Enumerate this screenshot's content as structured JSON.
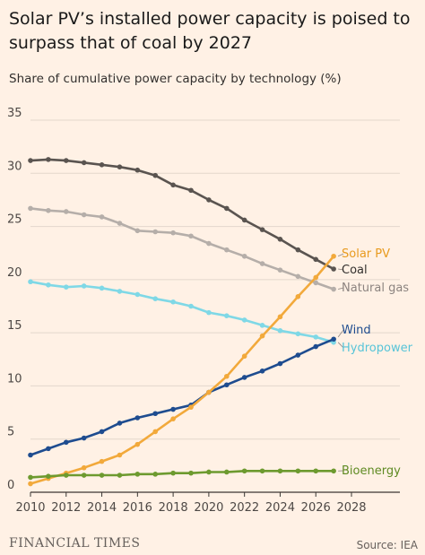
{
  "header": {
    "title": "Solar PV’s installed power capacity is poised to surpass that of coal by 2027",
    "subtitle": "Share of cumulative power capacity by technology (%)"
  },
  "footer": {
    "brand": "FINANCIAL TIMES",
    "source": "Source: IEA"
  },
  "chart_data": {
    "type": "line",
    "title": "Solar PV’s installed power capacity is poised to surpass that of coal by 2027",
    "subtitle": "Share of cumulative power capacity by technology (%)",
    "x": [
      2010,
      2011,
      2012,
      2013,
      2014,
      2015,
      2016,
      2017,
      2018,
      2019,
      2020,
      2021,
      2022,
      2023,
      2024,
      2025,
      2026,
      2027
    ],
    "xlim": [
      2010,
      2028
    ],
    "ylim": [
      0,
      35
    ],
    "x_ticks": [
      2010,
      2012,
      2014,
      2016,
      2018,
      2020,
      2022,
      2024,
      2026,
      2028
    ],
    "y_ticks": [
      0,
      5,
      10,
      15,
      20,
      25,
      30,
      35
    ],
    "grid": "horizontal",
    "legend": "direct-labels-right",
    "series": [
      {
        "name": "Coal",
        "color": "#5a5450",
        "values": [
          31.2,
          31.3,
          31.2,
          31.0,
          30.8,
          30.6,
          30.3,
          29.8,
          28.9,
          28.4,
          27.5,
          26.7,
          25.6,
          24.7,
          23.8,
          22.8,
          21.9,
          21.0
        ]
      },
      {
        "name": "Natural gas",
        "color": "#b5aea9",
        "values": [
          26.7,
          26.5,
          26.4,
          26.1,
          25.9,
          25.3,
          24.6,
          24.5,
          24.4,
          24.1,
          23.4,
          22.8,
          22.2,
          21.5,
          20.9,
          20.3,
          19.7,
          19.1
        ]
      },
      {
        "name": "Hydropower",
        "color": "#7fd8e6",
        "values": [
          19.8,
          19.5,
          19.3,
          19.4,
          19.2,
          18.9,
          18.6,
          18.2,
          17.9,
          17.5,
          16.9,
          16.6,
          16.2,
          15.7,
          15.2,
          14.9,
          14.6,
          14.1
        ]
      },
      {
        "name": "Wind",
        "color": "#1e4c8f",
        "values": [
          3.5,
          4.1,
          4.7,
          5.1,
          5.7,
          6.5,
          7.0,
          7.4,
          7.8,
          8.2,
          9.4,
          10.1,
          10.8,
          11.4,
          12.1,
          12.9,
          13.7,
          14.4
        ]
      },
      {
        "name": "Solar PV",
        "color": "#f2a93b",
        "values": [
          0.8,
          1.3,
          1.8,
          2.3,
          2.9,
          3.5,
          4.5,
          5.7,
          6.9,
          8.0,
          9.4,
          10.9,
          12.8,
          14.7,
          16.5,
          18.4,
          20.2,
          22.2
        ]
      },
      {
        "name": "Bioenergy",
        "color": "#6d9a2f",
        "values": [
          1.4,
          1.5,
          1.6,
          1.6,
          1.6,
          1.6,
          1.7,
          1.7,
          1.8,
          1.8,
          1.9,
          1.9,
          2.0,
          2.0,
          2.0,
          2.0,
          2.0,
          2.0
        ]
      }
    ],
    "label_colors": {
      "Coal": "#33302e",
      "Natural gas": "#8c8480",
      "Hydropower": "#57c4d8",
      "Wind": "#1e4c8f",
      "Solar PV": "#e89a1e",
      "Bioenergy": "#5e8a22"
    }
  }
}
